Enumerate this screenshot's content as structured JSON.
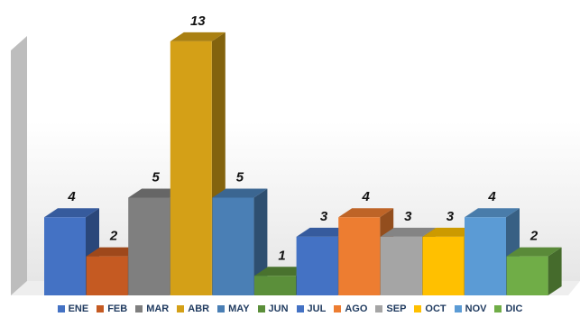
{
  "chart_data": {
    "type": "bar",
    "subtype": "3d-column",
    "categories": [
      "ENE",
      "FEB",
      "MAR",
      "ABR",
      "MAY",
      "JUN",
      "JUL",
      "AGO",
      "SEP",
      "OCT",
      "NOV",
      "DIC"
    ],
    "values": [
      4,
      2,
      5,
      13,
      5,
      1,
      3,
      4,
      3,
      3,
      4,
      2
    ],
    "colors": [
      "#4472c4",
      "#c55a22",
      "#7f7f7f",
      "#d4a017",
      "#4a7fb5",
      "#5b8f3a",
      "#4472c4",
      "#ed7d31",
      "#a5a5a5",
      "#ffc000",
      "#5b9bd5",
      "#70ad47"
    ],
    "data_labels": true,
    "legend_position": "bottom",
    "grid": false
  }
}
